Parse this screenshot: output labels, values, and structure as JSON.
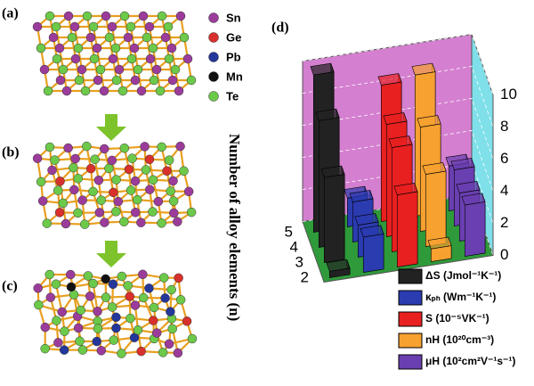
{
  "panel_labels": [
    "(a)",
    "(b)",
    "(c)",
    "(d)"
  ],
  "atom_legend": [
    "Sn",
    "Ge",
    "Pb",
    "Mn",
    "Te"
  ],
  "chart_data": {
    "type": "bar3d",
    "xlabel": "Number of alloy elements (n)",
    "categories": [
      "2",
      "3",
      "4",
      "5"
    ],
    "zlim": [
      0,
      10
    ],
    "zticks": [
      0,
      2,
      4,
      6,
      8,
      10
    ],
    "grid": true,
    "series": [
      {
        "name": "ΔS (Jmol⁻¹K⁻¹)",
        "color": "#222222",
        "values": [
          0.4,
          5.3,
          7.9,
          9.8
        ]
      },
      {
        "name": "κₚₕ (Wm⁻¹K⁻¹)",
        "color": "#2b3bb0",
        "values": [
          2.2,
          2.0,
          2.5,
          1.8
        ]
      },
      {
        "name": "S (10⁻⁵VK⁻¹)",
        "color": "#e8201f",
        "values": [
          4.5,
          6.5,
          7.0,
          8.5
        ]
      },
      {
        "name": "nH (10²⁰cm⁻³)",
        "color": "#f7a131",
        "values": [
          0.8,
          4.5,
          6.5,
          8.8
        ]
      },
      {
        "name": "μH (10²cm²V⁻¹s⁻¹)",
        "color": "#6a3fb0",
        "values": [
          3.2,
          3.0,
          3.5,
          2.8
        ]
      }
    ]
  }
}
